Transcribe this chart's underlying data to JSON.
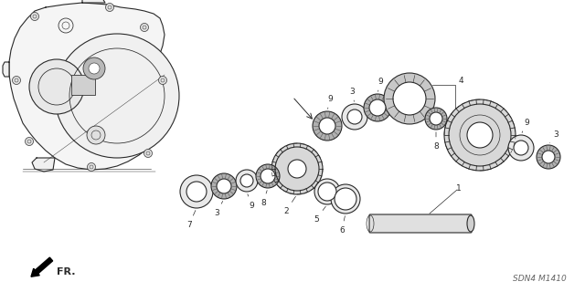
{
  "background_color": "#ffffff",
  "line_color": "#2a2a2a",
  "watermark": "SDN4 M1410",
  "fr_label": "FR.",
  "figsize": [
    6.4,
    3.2
  ],
  "dpi": 100
}
